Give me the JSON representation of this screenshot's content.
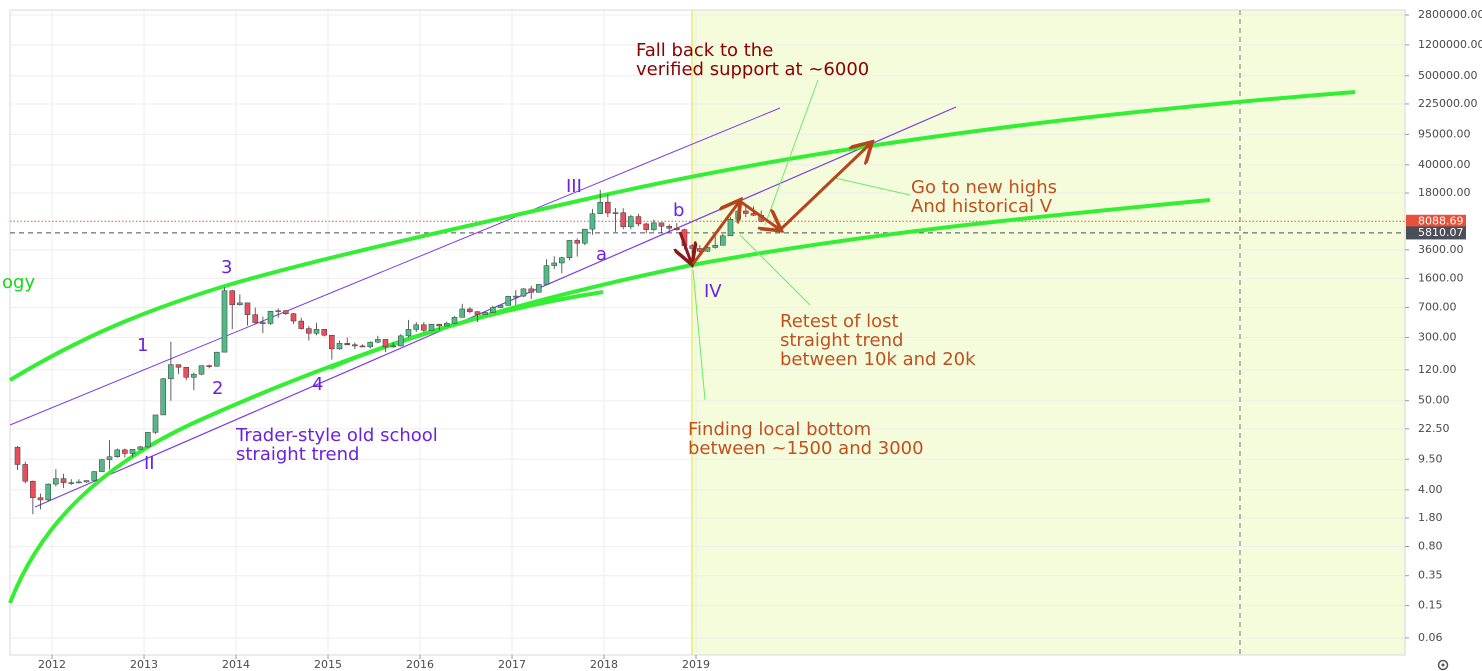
{
  "chart_data": {
    "type": "candlestick",
    "log_scale": true,
    "grid": true,
    "up_color": "#53b987",
    "down_color": "#eb4d5c",
    "xlim": [
      2011.543,
      2026.707
    ],
    "xticks": [
      2012,
      2013,
      2014,
      2015,
      2016,
      2017,
      2018,
      2019
    ],
    "ylim": [
      0.037,
      3226000
    ],
    "yticks": [
      {
        "value": 2800000,
        "label": "2800000.00"
      },
      {
        "value": 1200000,
        "label": "1200000.00"
      },
      {
        "value": 500000,
        "label": "500000.00"
      },
      {
        "value": 225000,
        "label": "225000.00"
      },
      {
        "value": 95000,
        "label": "95000.00"
      },
      {
        "value": 40000,
        "label": "40000.00"
      },
      {
        "value": 18000,
        "label": "18000.00"
      },
      {
        "value": 3600,
        "label": "3600.00"
      },
      {
        "value": 1600,
        "label": "1600.00"
      },
      {
        "value": 700,
        "label": "700.00"
      },
      {
        "value": 300,
        "label": "300.00"
      },
      {
        "value": 120,
        "label": "120.00"
      },
      {
        "value": 50,
        "label": "50.00"
      },
      {
        "value": 22.5,
        "label": "22.50"
      },
      {
        "value": 9.5,
        "label": "9.50"
      },
      {
        "value": 4,
        "label": "4.00"
      },
      {
        "value": 1.8,
        "label": "1.80"
      },
      {
        "value": 0.8,
        "label": "0.80"
      },
      {
        "value": 0.35,
        "label": "0.35"
      },
      {
        "value": 0.15,
        "label": "0.15"
      },
      {
        "value": 0.06,
        "label": "0.06"
      }
    ],
    "price_markers": [
      {
        "value": 8088.69,
        "color": "#e8503a",
        "line_style": "dotted"
      },
      {
        "value": 5810.07,
        "color": "#4a4e59",
        "line_style": "dashed"
      }
    ],
    "x": [
      2011.583,
      2011.667,
      2011.75,
      2011.833,
      2011.917,
      2012,
      2012.083,
      2012.167,
      2012.25,
      2012.333,
      2012.417,
      2012.5,
      2012.583,
      2012.667,
      2012.75,
      2012.833,
      2012.917,
      2013,
      2013.083,
      2013.167,
      2013.25,
      2013.333,
      2013.417,
      2013.5,
      2013.583,
      2013.667,
      2013.75,
      2013.833,
      2013.917,
      2014,
      2014.083,
      2014.167,
      2014.25,
      2014.333,
      2014.417,
      2014.5,
      2014.583,
      2014.667,
      2014.75,
      2014.833,
      2014.917,
      2015,
      2015.083,
      2015.167,
      2015.25,
      2015.333,
      2015.417,
      2015.5,
      2015.583,
      2015.667,
      2015.75,
      2015.833,
      2015.917,
      2016,
      2016.083,
      2016.167,
      2016.25,
      2016.333,
      2016.417,
      2016.5,
      2016.583,
      2016.667,
      2016.75,
      2016.833,
      2016.917,
      2017,
      2017.083,
      2017.167,
      2017.25,
      2017.333,
      2017.417,
      2017.5,
      2017.583,
      2017.667,
      2017.75,
      2017.833,
      2017.917,
      2018,
      2018.083,
      2018.167,
      2018.25,
      2018.333,
      2018.417,
      2018.5,
      2018.583,
      2018.667,
      2018.75,
      2018.833,
      2018.917,
      2019,
      2019.083,
      2019.167,
      2019.25,
      2019.333,
      2019.417,
      2019.5,
      2019.583,
      2019.667
    ],
    "open": [
      13.4,
      8.2,
      5.1,
      3.2,
      3.0,
      4.7,
      5.5,
      4.9,
      4.9,
      5.0,
      5.2,
      6.7,
      9.4,
      10.2,
      12.4,
      11.2,
      12.6,
      13.5,
      20.4,
      33.4,
      93,
      139,
      129,
      97,
      106,
      135,
      133,
      198,
      1130,
      757,
      800,
      573,
      458,
      447,
      630,
      640,
      589,
      478,
      386,
      338,
      378,
      320,
      217,
      254,
      244,
      236,
      230,
      263,
      284,
      230,
      236,
      314,
      377,
      430,
      368,
      437,
      416,
      448,
      531,
      673,
      624,
      575,
      609,
      700,
      745,
      963,
      970,
      1190,
      1080,
      1350,
      2300,
      2480,
      2875,
      4700,
      4340,
      6470,
      10000,
      13880,
      10220,
      10320,
      6920,
      9240,
      7500,
      6390,
      7730,
      7020,
      6630,
      6370,
      4040,
      3740,
      3460,
      3850,
      4100,
      5350,
      8570,
      10820,
      10090,
      9600
    ],
    "high": [
      13.8,
      8.9,
      5.2,
      3.6,
      4.8,
      7.2,
      6.3,
      5.4,
      5.4,
      5.2,
      6.8,
      9.6,
      16.4,
      12.9,
      12.9,
      12.7,
      13.9,
      20.4,
      33.4,
      95,
      266,
      140,
      129,
      111,
      136,
      139,
      198,
      1240,
      1160,
      1020,
      800,
      700,
      545,
      630,
      680,
      655,
      600,
      525,
      415,
      455,
      380,
      320,
      275,
      300,
      260,
      247,
      268,
      315,
      285,
      260,
      330,
      495,
      465,
      465,
      440,
      442,
      470,
      550,
      780,
      705,
      630,
      630,
      740,
      755,
      980,
      1150,
      1210,
      1300,
      1350,
      2760,
      3000,
      2950,
      4750,
      4980,
      6470,
      11500,
      19800,
      17200,
      11800,
      11700,
      9760,
      10000,
      7780,
      8480,
      7760,
      7410,
      7680,
      6570,
      4250,
      4110,
      4200,
      5480,
      5620,
      9080,
      13880,
      13100,
      12320,
      10950
    ],
    "low": [
      7.0,
      4.8,
      2.0,
      2.3,
      2.9,
      4.4,
      4.2,
      4.6,
      4.8,
      4.9,
      5.1,
      6.6,
      7.1,
      9.9,
      10.0,
      10.2,
      12.5,
      13.2,
      19.5,
      33.2,
      50,
      107,
      89,
      67,
      103,
      125,
      131,
      198,
      380,
      740,
      420,
      445,
      340,
      430,
      525,
      565,
      440,
      375,
      275,
      320,
      310,
      160,
      212,
      240,
      215,
      228,
      220,
      255,
      198,
      225,
      234,
      300,
      350,
      350,
      366,
      370,
      414,
      442,
      528,
      595,
      465,
      573,
      604,
      692,
      741,
      750,
      945,
      890,
      1070,
      1350,
      2080,
      1850,
      2670,
      2970,
      4100,
      5510,
      10700,
      9100,
      6000,
      6450,
      6430,
      7030,
      5780,
      6070,
      5880,
      6100,
      6150,
      3650,
      3160,
      3350,
      3400,
      3730,
      4050,
      5330,
      7460,
      9080,
      9350,
      7860
    ],
    "close": [
      8.2,
      5.1,
      3.2,
      3.0,
      4.7,
      5.5,
      4.9,
      4.9,
      5.0,
      5.2,
      6.7,
      9.4,
      10.2,
      12.4,
      11.2,
      12.6,
      13.5,
      20.4,
      33.4,
      93,
      139,
      129,
      97,
      106,
      135,
      133,
      198,
      1130,
      757,
      800,
      573,
      458,
      447,
      630,
      640,
      589,
      478,
      386,
      338,
      378,
      320,
      217,
      254,
      244,
      236,
      230,
      263,
      284,
      230,
      236,
      314,
      377,
      430,
      368,
      437,
      416,
      448,
      531,
      673,
      624,
      575,
      609,
      700,
      745,
      963,
      970,
      1190,
      1080,
      1350,
      2300,
      2480,
      2875,
      4700,
      4340,
      6470,
      10000,
      13880,
      10220,
      10320,
      6920,
      9240,
      7500,
      6390,
      7730,
      7020,
      6630,
      6370,
      4040,
      3740,
      3460,
      3850,
      4100,
      5350,
      8570,
      10820,
      10090,
      9600,
      8088.69
    ],
    "annotations": [
      [
        "Fall back to the",
        "verified support at ~6000"
      ],
      [
        "Go to new highs",
        "And historical V"
      ],
      [
        "Retest of lost",
        "straight trend",
        "between 10k and 20k"
      ],
      [
        "Finding local bottom",
        "between ~1500 and 3000"
      ],
      [
        "Trader-style old school",
        "straight trend"
      ]
    ],
    "wave_labels": [
      "III",
      "b",
      "a",
      "IV",
      "3",
      "1",
      "2",
      "4",
      "II"
    ],
    "cut_label": "ogy"
  }
}
